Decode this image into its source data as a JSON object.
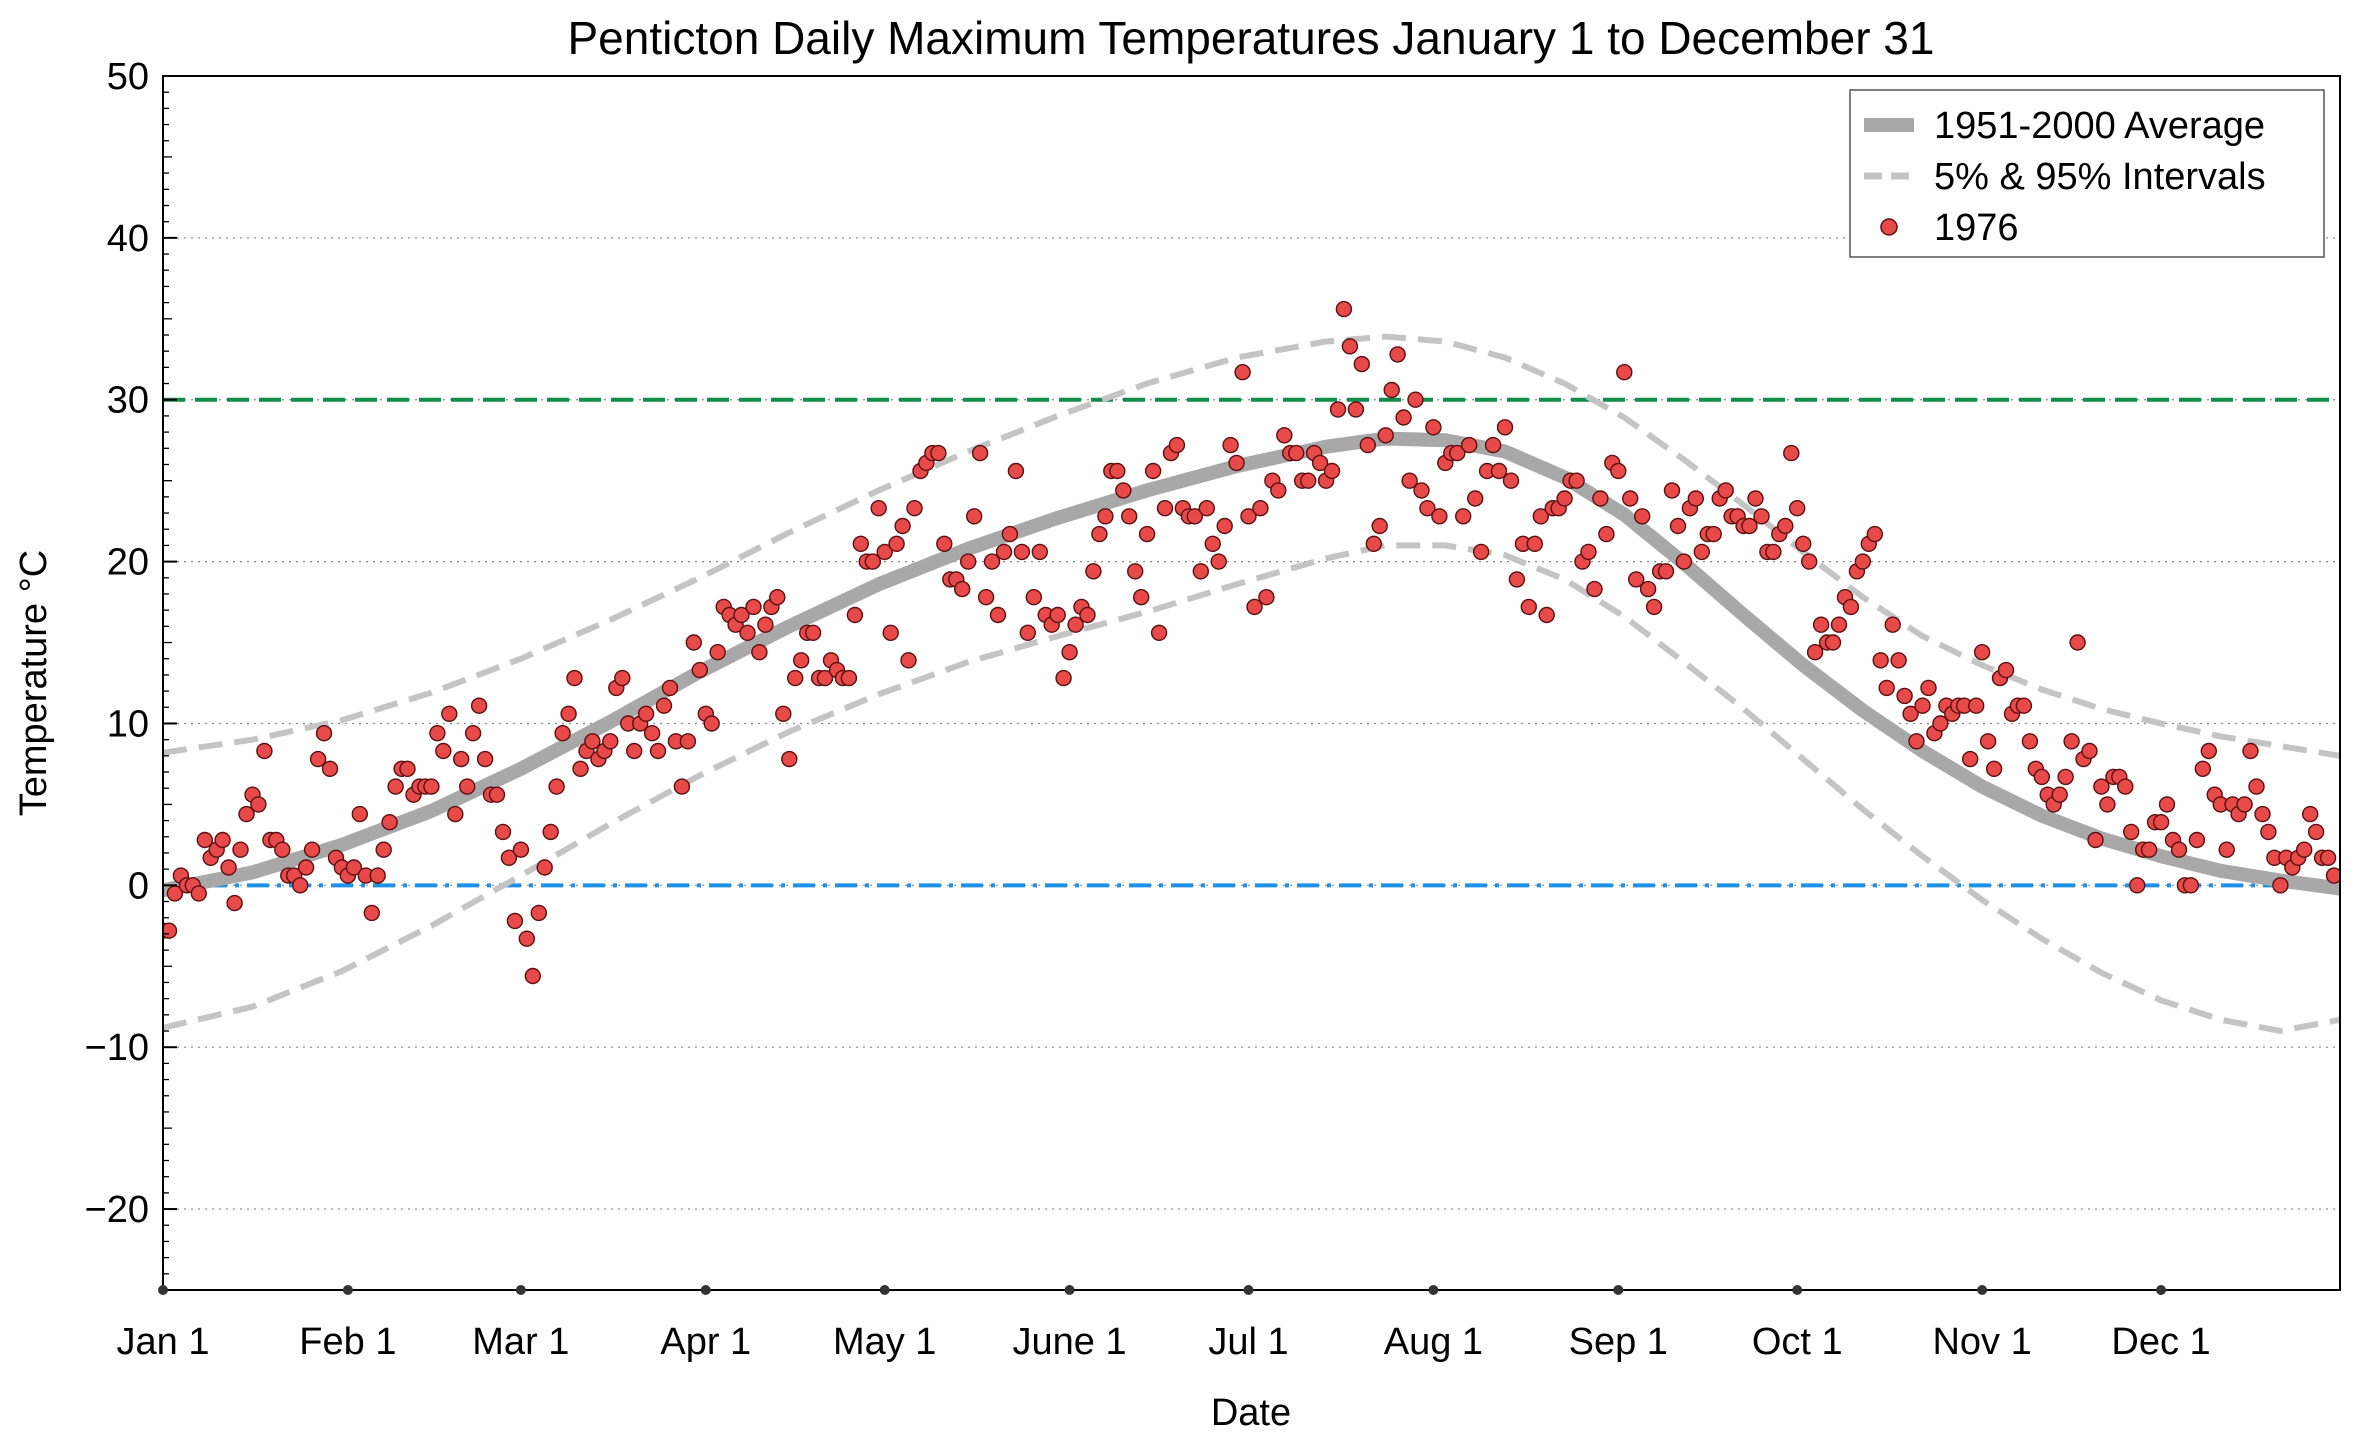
{
  "chart_data": {
    "type": "scatter",
    "title": "Penticton Daily Maximum Temperatures January 1 to December 31",
    "xlabel": "Date",
    "ylabel": "Temperature °C",
    "xlim": [
      0,
      365
    ],
    "ylim": [
      -25,
      50
    ],
    "yticks": [
      -20,
      -10,
      0,
      10,
      20,
      30,
      40,
      50
    ],
    "xticks": [
      {
        "day": 0,
        "label": "Jan 1"
      },
      {
        "day": 31,
        "label": "Feb 1"
      },
      {
        "day": 60,
        "label": "Mar 1"
      },
      {
        "day": 91,
        "label": "Apr 1"
      },
      {
        "day": 121,
        "label": "May 1"
      },
      {
        "day": 152,
        "label": "June 1"
      },
      {
        "day": 182,
        "label": "Jul 1"
      },
      {
        "day": 213,
        "label": "Aug 1"
      },
      {
        "day": 244,
        "label": "Sep 1"
      },
      {
        "day": 274,
        "label": "Oct 1"
      },
      {
        "day": 305,
        "label": "Nov 1"
      },
      {
        "day": 335,
        "label": "Dec 1"
      }
    ],
    "grid": "horizontal dotted",
    "legend_position": "top-right",
    "reference_lines": [
      {
        "y": 30,
        "color": "#138a4e",
        "style": "dashed"
      },
      {
        "y": 0,
        "color": "#1e90e8",
        "style": "dash-dot"
      }
    ],
    "series": [
      {
        "name": "1951-2000 Average",
        "style": "thick line",
        "color": "#a8a8a8",
        "x": [
          0,
          15,
          30,
          45,
          60,
          75,
          90,
          105,
          120,
          135,
          150,
          165,
          180,
          195,
          205,
          215,
          225,
          235,
          245,
          255,
          265,
          275,
          285,
          295,
          305,
          315,
          325,
          335,
          345,
          355,
          365
        ],
        "y": [
          -0.3,
          0.8,
          2.5,
          4.6,
          7.2,
          10.1,
          13.2,
          16.0,
          18.6,
          20.8,
          22.7,
          24.4,
          25.9,
          27.1,
          27.6,
          27.5,
          26.8,
          25.2,
          22.9,
          19.9,
          16.7,
          13.6,
          10.8,
          8.3,
          6.1,
          4.3,
          2.9,
          1.8,
          0.9,
          0.3,
          -0.2
        ]
      },
      {
        "name": "5% & 95% Intervals",
        "style": "dashed line",
        "color": "#c4c4c4",
        "upper": {
          "x": [
            0,
            15,
            30,
            45,
            60,
            75,
            90,
            105,
            120,
            135,
            150,
            165,
            180,
            195,
            205,
            215,
            225,
            235,
            245,
            255,
            265,
            275,
            285,
            295,
            305,
            315,
            325,
            335,
            345,
            355,
            365
          ],
          "y": [
            8.2,
            9.0,
            10.2,
            11.9,
            14.0,
            16.4,
            19.0,
            21.8,
            24.4,
            26.8,
            29.0,
            31.0,
            32.6,
            33.6,
            33.9,
            33.6,
            32.6,
            31.0,
            28.9,
            26.3,
            23.5,
            20.6,
            17.8,
            15.4,
            13.6,
            12.1,
            10.9,
            10.0,
            9.2,
            8.6,
            8.0
          ]
        },
        "lower": {
          "x": [
            0,
            15,
            30,
            45,
            60,
            75,
            90,
            105,
            120,
            135,
            150,
            165,
            180,
            195,
            205,
            215,
            225,
            235,
            245,
            255,
            265,
            275,
            285,
            295,
            305,
            315,
            325,
            335,
            345,
            355,
            365
          ],
          "y": [
            -8.8,
            -7.5,
            -5.3,
            -2.5,
            0.6,
            3.8,
            6.8,
            9.5,
            11.8,
            13.8,
            15.4,
            16.9,
            18.6,
            20.2,
            21.0,
            21.0,
            20.4,
            18.9,
            16.6,
            13.8,
            10.9,
            7.8,
            4.7,
            1.8,
            -0.9,
            -3.3,
            -5.4,
            -7.1,
            -8.3,
            -9.0,
            -8.3
          ]
        }
      },
      {
        "name": "1976",
        "style": "markers",
        "color": "#e84a4a",
        "x": [
          0,
          1,
          2,
          3,
          4,
          5,
          6,
          7,
          8,
          9,
          10,
          11,
          12,
          13,
          14,
          15,
          16,
          17,
          18,
          19,
          20,
          21,
          22,
          23,
          24,
          25,
          26,
          27,
          28,
          29,
          30,
          31,
          32,
          33,
          34,
          35,
          36,
          37,
          38,
          39,
          40,
          41,
          42,
          43,
          44,
          45,
          46,
          47,
          48,
          49,
          50,
          51,
          52,
          53,
          54,
          55,
          56,
          57,
          58,
          59,
          60,
          61,
          62,
          63,
          64,
          65,
          66,
          67,
          68,
          69,
          70,
          71,
          72,
          73,
          74,
          75,
          76,
          77,
          78,
          79,
          80,
          81,
          82,
          83,
          84,
          85,
          86,
          87,
          88,
          89,
          90,
          91,
          92,
          93,
          94,
          95,
          96,
          97,
          98,
          99,
          100,
          101,
          102,
          103,
          104,
          105,
          106,
          107,
          108,
          109,
          110,
          111,
          112,
          113,
          114,
          115,
          116,
          117,
          118,
          119,
          120,
          121,
          122,
          123,
          124,
          125,
          126,
          127,
          128,
          129,
          130,
          131,
          132,
          133,
          134,
          135,
          136,
          137,
          138,
          139,
          140,
          141,
          142,
          143,
          144,
          145,
          146,
          147,
          148,
          149,
          150,
          151,
          152,
          153,
          154,
          155,
          156,
          157,
          158,
          159,
          160,
          161,
          162,
          163,
          164,
          165,
          166,
          167,
          168,
          169,
          170,
          171,
          172,
          173,
          174,
          175,
          176,
          177,
          178,
          179,
          180,
          181,
          182,
          183,
          184,
          185,
          186,
          187,
          188,
          189,
          190,
          191,
          192,
          193,
          194,
          195,
          196,
          197,
          198,
          199,
          200,
          201,
          202,
          203,
          204,
          205,
          206,
          207,
          208,
          209,
          210,
          211,
          212,
          213,
          214,
          215,
          216,
          217,
          218,
          219,
          220,
          221,
          222,
          223,
          224,
          225,
          226,
          227,
          228,
          229,
          230,
          231,
          232,
          233,
          234,
          235,
          236,
          237,
          238,
          239,
          240,
          241,
          242,
          243,
          244,
          245,
          246,
          247,
          248,
          249,
          250,
          251,
          252,
          253,
          254,
          255,
          256,
          257,
          258,
          259,
          260,
          261,
          262,
          263,
          264,
          265,
          266,
          267,
          268,
          269,
          270,
          271,
          272,
          273,
          274,
          275,
          276,
          277,
          278,
          279,
          280,
          281,
          282,
          283,
          284,
          285,
          286,
          287,
          288,
          289,
          290,
          291,
          292,
          293,
          294,
          295,
          296,
          297,
          298,
          299,
          300,
          301,
          302,
          303,
          304,
          305,
          306,
          307,
          308,
          309,
          310,
          311,
          312,
          313,
          314,
          315,
          316,
          317,
          318,
          319,
          320,
          321,
          322,
          323,
          324,
          325,
          326,
          327,
          328,
          329,
          330,
          331,
          332,
          333,
          334,
          335,
          336,
          337,
          338,
          339,
          340,
          341,
          342,
          343,
          344,
          345,
          346,
          347,
          348,
          349,
          350,
          351,
          352,
          353,
          354,
          355,
          356,
          357,
          358,
          359,
          360,
          361,
          362,
          363,
          364
        ],
        "y": [
          -2.8,
          -2.8,
          -0.5,
          0.6,
          0.0,
          0.0,
          -0.5,
          2.8,
          1.7,
          2.2,
          2.8,
          1.1,
          -1.1,
          2.2,
          4.4,
          5.6,
          5.0,
          8.3,
          2.8,
          2.8,
          2.2,
          0.6,
          0.6,
          0.0,
          1.1,
          2.2,
          7.8,
          9.4,
          7.2,
          1.7,
          1.1,
          0.6,
          1.1,
          4.4,
          0.6,
          -1.7,
          0.6,
          2.2,
          3.9,
          6.1,
          7.2,
          7.2,
          5.6,
          6.1,
          6.1,
          6.1,
          9.4,
          8.3,
          10.6,
          4.4,
          7.8,
          6.1,
          9.4,
          11.1,
          7.8,
          5.6,
          5.6,
          3.3,
          1.7,
          -2.2,
          2.2,
          -3.3,
          -5.6,
          -1.7,
          1.1,
          3.3,
          6.1,
          9.4,
          10.6,
          12.8,
          7.2,
          8.3,
          8.9,
          7.8,
          8.3,
          8.9,
          12.2,
          12.8,
          10.0,
          8.3,
          10.0,
          10.6,
          9.4,
          8.3,
          11.1,
          12.2,
          8.9,
          6.1,
          8.9,
          15.0,
          13.3,
          10.6,
          10.0,
          14.4,
          17.2,
          16.7,
          16.1,
          16.7,
          15.6,
          17.2,
          14.4,
          16.1,
          17.2,
          17.8,
          10.6,
          7.8,
          12.8,
          13.9,
          15.6,
          15.6,
          12.8,
          12.8,
          13.9,
          13.3,
          12.8,
          12.8,
          16.7,
          21.1,
          20.0,
          20.0,
          23.3,
          20.6,
          15.6,
          21.1,
          22.2,
          13.9,
          23.3,
          25.6,
          26.1,
          26.7,
          26.7,
          21.1,
          18.9,
          18.9,
          18.3,
          20.0,
          22.8,
          26.7,
          17.8,
          20.0,
          16.7,
          20.6,
          21.7,
          25.6,
          20.6,
          15.6,
          17.8,
          20.6,
          16.7,
          16.1,
          16.7,
          12.8,
          14.4,
          16.1,
          17.2,
          16.7,
          19.4,
          21.7,
          22.8,
          25.6,
          25.6,
          24.4,
          22.8,
          19.4,
          17.8,
          21.7,
          25.6,
          15.6,
          23.3,
          26.7,
          27.2,
          23.3,
          22.8,
          22.8,
          19.4,
          23.3,
          21.1,
          20.0,
          22.2,
          27.2,
          26.1,
          31.7,
          22.8,
          17.2,
          23.3,
          17.8,
          25.0,
          24.4,
          27.8,
          26.7,
          26.7,
          25.0,
          25.0,
          26.7,
          26.1,
          25.0,
          25.6,
          29.4,
          35.6,
          33.3,
          29.4,
          32.2,
          27.2,
          21.1,
          22.2,
          27.8,
          30.6,
          32.8,
          28.9,
          25.0,
          30.0,
          24.4,
          23.3,
          28.3,
          22.8,
          26.1,
          26.7,
          26.7,
          22.8,
          27.2,
          23.9,
          20.6,
          25.6,
          27.2,
          25.6,
          28.3,
          25.0,
          18.9,
          21.1,
          17.2,
          21.1,
          22.8,
          16.7,
          23.3,
          23.3,
          23.9,
          25.0,
          25.0,
          20.0,
          20.6,
          18.3,
          23.9,
          21.7,
          26.1,
          25.6,
          31.7,
          23.9,
          18.9,
          22.8,
          18.3,
          17.2,
          19.4,
          19.4,
          24.4,
          22.2,
          20.0,
          23.3,
          23.9,
          20.6,
          21.7,
          21.7,
          23.9,
          24.4,
          22.8,
          22.8,
          22.2,
          22.2,
          23.9,
          22.8,
          20.6,
          20.6,
          21.7,
          22.2,
          26.7,
          23.3,
          21.1,
          20.0,
          14.4,
          16.1,
          15.0,
          15.0,
          16.1,
          17.8,
          17.2,
          19.4,
          20.0,
          21.1,
          21.7,
          13.9,
          12.2,
          16.1,
          13.9,
          11.7,
          10.6,
          8.9,
          11.1,
          12.2,
          9.4,
          10.0,
          11.1,
          10.6,
          11.1,
          11.1,
          7.8,
          11.1,
          14.4,
          8.9,
          7.2,
          12.8,
          13.3,
          10.6,
          11.1,
          11.1,
          8.9,
          7.2,
          6.7,
          5.6,
          5.0,
          5.6,
          6.7,
          8.9,
          15.0,
          7.8,
          8.3,
          2.8,
          6.1,
          5.0,
          6.7,
          6.7,
          6.1,
          3.3,
          0.0,
          2.2,
          2.2,
          3.9,
          3.9,
          5.0,
          2.8,
          2.2,
          0.0,
          0.0,
          2.8,
          7.2,
          8.3,
          5.6,
          5.0,
          2.2,
          5.0,
          4.4,
          5.0,
          8.3,
          6.1,
          4.4,
          3.3,
          1.7,
          0.0,
          1.7,
          1.1,
          1.7,
          2.2,
          4.4,
          3.3,
          1.7,
          1.7,
          0.6
        ]
      }
    ]
  }
}
